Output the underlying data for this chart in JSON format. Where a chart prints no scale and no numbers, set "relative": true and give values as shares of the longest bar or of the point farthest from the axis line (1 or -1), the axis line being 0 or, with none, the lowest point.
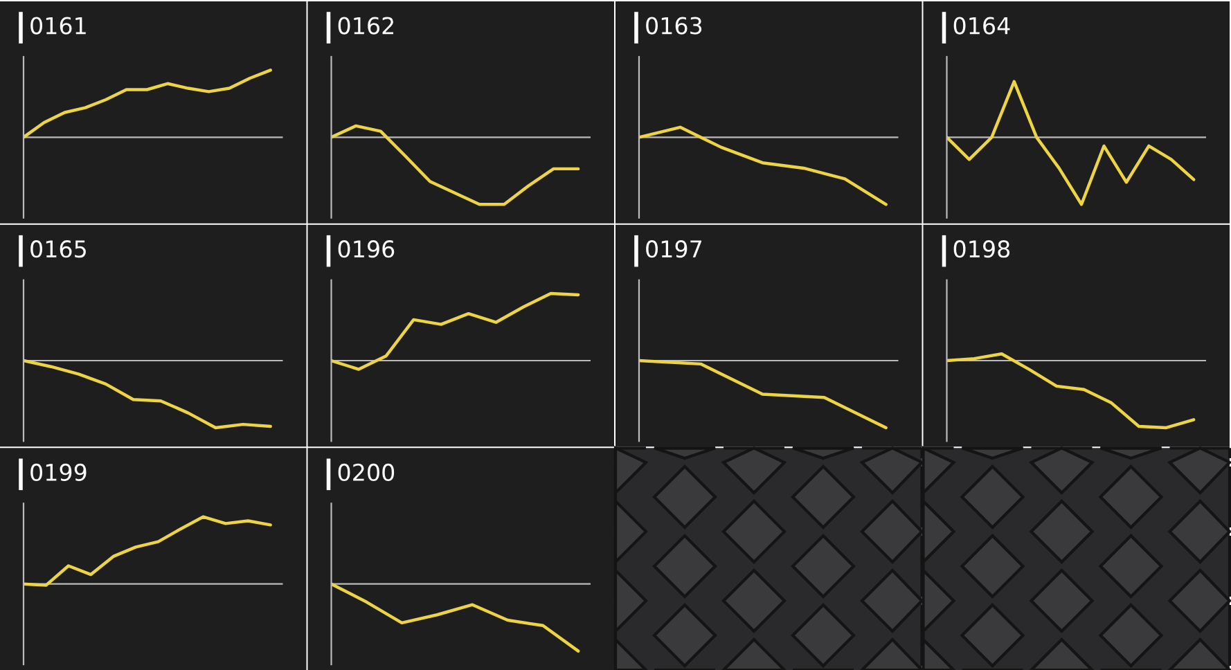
{
  "chart_data": [
    {
      "type": "line",
      "title": "0161",
      "relative": true,
      "categories": [
        null,
        null,
        null,
        null,
        null,
        null,
        null,
        null,
        null,
        null,
        null,
        null,
        null
      ],
      "series": [
        {
          "color": "#ecd444",
          "values": [
            0,
            0.22,
            0.37,
            0.44,
            0.56,
            0.71,
            0.71,
            0.8,
            0.73,
            0.68,
            0.73,
            0.88,
            1
          ]
        }
      ]
    },
    {
      "type": "line",
      "title": "0162",
      "relative": true,
      "categories": [
        null,
        null,
        null,
        null,
        null,
        null,
        null,
        null,
        null,
        null,
        null
      ],
      "series": [
        {
          "color": "#ecd444",
          "values": [
            0,
            0.17,
            0.09,
            -0.28,
            -0.66,
            -0.83,
            -1,
            -1,
            -0.72,
            -0.47,
            -0.47
          ]
        }
      ]
    },
    {
      "type": "line",
      "title": "0163",
      "relative": true,
      "categories": [
        null,
        null,
        null,
        null,
        null,
        null,
        null
      ],
      "series": [
        {
          "color": "#ecd444",
          "values": [
            0,
            0.15,
            -0.15,
            -0.38,
            -0.46,
            -0.62,
            -1
          ]
        }
      ]
    },
    {
      "type": "line",
      "title": "0164",
      "relative": true,
      "categories": [
        null,
        null,
        null,
        null,
        null,
        null,
        null,
        null,
        null,
        null,
        null,
        null
      ],
      "series": [
        {
          "color": "#ecd444",
          "values": [
            0,
            -0.33,
            0,
            0.83,
            0,
            -0.46,
            -1,
            -0.13,
            -0.67,
            -0.13,
            -0.33,
            -0.63
          ]
        }
      ]
    },
    {
      "type": "line",
      "title": "0165",
      "relative": true,
      "categories": [
        null,
        null,
        null,
        null,
        null,
        null,
        null,
        null,
        null,
        null
      ],
      "series": [
        {
          "color": "#ecd444",
          "values": [
            0,
            -0.09,
            -0.2,
            -0.35,
            -0.58,
            -0.6,
            -0.78,
            -1,
            -0.95,
            -0.98
          ]
        }
      ]
    },
    {
      "type": "line",
      "title": "0196",
      "relative": true,
      "categories": [
        null,
        null,
        null,
        null,
        null,
        null,
        null,
        null,
        null,
        null
      ],
      "series": [
        {
          "color": "#ecd444",
          "values": [
            0,
            -0.13,
            0.07,
            0.61,
            0.54,
            0.7,
            0.57,
            0.8,
            1,
            0.98
          ]
        }
      ]
    },
    {
      "type": "line",
      "title": "0197",
      "relative": true,
      "categories": [
        null,
        null,
        null,
        null,
        null
      ],
      "series": [
        {
          "color": "#ecd444",
          "values": [
            0,
            -0.05,
            -0.5,
            -0.55,
            -1
          ]
        }
      ]
    },
    {
      "type": "line",
      "title": "0198",
      "relative": true,
      "categories": [
        null,
        null,
        null,
        null,
        null,
        null,
        null,
        null,
        null,
        null
      ],
      "series": [
        {
          "color": "#ecd444",
          "values": [
            0,
            0.03,
            0.1,
            -0.13,
            -0.38,
            -0.43,
            -0.63,
            -0.98,
            -1,
            -0.88
          ]
        }
      ]
    },
    {
      "type": "line",
      "title": "0199",
      "relative": true,
      "categories": [
        null,
        null,
        null,
        null,
        null,
        null,
        null,
        null,
        null,
        null,
        null,
        null
      ],
      "series": [
        {
          "color": "#ecd444",
          "values": [
            0,
            -0.02,
            0.27,
            0.14,
            0.41,
            0.55,
            0.63,
            0.82,
            1,
            0.9,
            0.94,
            0.88
          ]
        }
      ]
    },
    {
      "type": "line",
      "title": "0200",
      "relative": true,
      "categories": [
        null,
        null,
        null,
        null,
        null,
        null,
        null,
        null
      ],
      "series": [
        {
          "color": "#ecd444",
          "values": [
            0,
            -0.27,
            -0.58,
            -0.46,
            -0.31,
            -0.54,
            -0.62,
            -1
          ]
        }
      ]
    }
  ]
}
